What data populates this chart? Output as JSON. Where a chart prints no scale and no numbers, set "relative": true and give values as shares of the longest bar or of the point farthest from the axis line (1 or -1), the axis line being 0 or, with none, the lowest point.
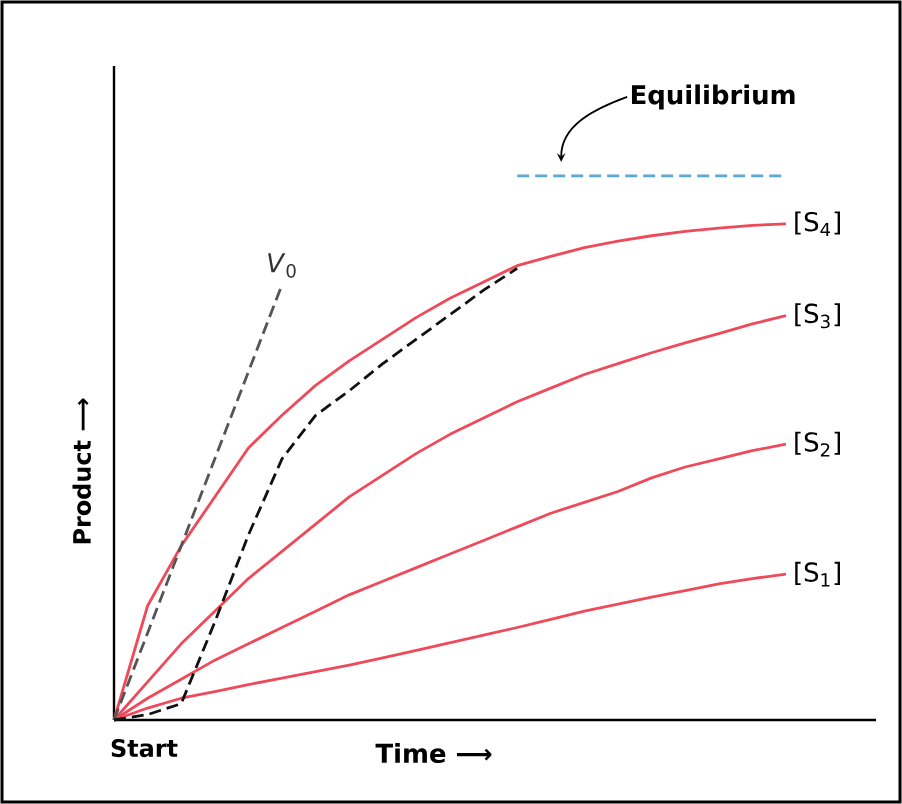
{
  "chart_data": {
    "type": "line",
    "relative": true,
    "xlabel": "Time ⟶",
    "ylabel": "Product ⟶",
    "annotations": [
      "Start"
    ],
    "legend": false,
    "marker": "none",
    "categories": [
      null,
      null,
      null,
      null,
      null,
      null,
      null,
      null,
      null,
      null,
      null,
      null,
      null,
      null,
      null,
      null,
      null,
      null,
      null,
      null,
      null
    ],
    "series": [
      {
        "name": "[S$_{4}$]",
        "color": "#ee4a5a",
        "values": [
          0,
          0.21,
          0.32,
          0.41,
          0.5,
          0.56,
          0.615,
          0.66,
          0.7,
          0.74,
          0.775,
          0.805,
          0.835,
          0.852,
          0.868,
          0.88,
          0.89,
          0.898,
          0.904,
          0.909,
          0.912
        ]
      },
      {
        "name": "[S$_{3}$]",
        "color": "#ee4a5a",
        "values": [
          0,
          0.07,
          0.14,
          0.2,
          0.26,
          0.31,
          0.36,
          0.41,
          0.45,
          0.49,
          0.525,
          0.555,
          0.585,
          0.61,
          0.635,
          0.655,
          0.675,
          0.693,
          0.71,
          0.728,
          0.743
        ]
      },
      {
        "name": "[S$_{2}$]",
        "color": "#ee4a5a",
        "values": [
          0,
          0.04,
          0.075,
          0.11,
          0.14,
          0.17,
          0.2,
          0.23,
          0.255,
          0.28,
          0.305,
          0.33,
          0.355,
          0.38,
          0.4,
          0.42,
          0.445,
          0.465,
          0.48,
          0.495,
          0.507
        ]
      },
      {
        "name": "[S$_{1}$]",
        "color": "#ee4a5a",
        "values": [
          0,
          0.022,
          0.04,
          0.052,
          0.065,
          0.077,
          0.089,
          0.101,
          0.114,
          0.128,
          0.142,
          0.156,
          0.17,
          0.185,
          0.2,
          0.213,
          0.226,
          0.238,
          0.25,
          0.26,
          0.268
        ]
      },
      {
        "name": "*V*$_{0}$",
        "color": "#555555",
        "line_style": "dashed",
        "values": [
          0,
          0.16,
          0.32,
          0.48,
          0.64,
          0.8,
          null,
          null,
          null,
          null,
          null,
          null,
          null,
          null,
          null,
          null,
          null,
          null,
          null,
          null,
          null
        ]
      },
      {
        "color": "#111111",
        "line_style": "dashed",
        "values": [
          0,
          0.01,
          0.03,
          0.18,
          0.34,
          0.48,
          0.56,
          0.605,
          0.655,
          0.7,
          0.745,
          0.79,
          0.83,
          null,
          null,
          null,
          null,
          null,
          null,
          null,
          null
        ]
      },
      {
        "name": "Equilibrium",
        "color": "#5ba8d8",
        "line_style": "dashed",
        "values": [
          null,
          null,
          null,
          null,
          null,
          null,
          null,
          null,
          null,
          null,
          null,
          null,
          1,
          1,
          1,
          1,
          1,
          1,
          1,
          1,
          1
        ]
      }
    ]
  }
}
